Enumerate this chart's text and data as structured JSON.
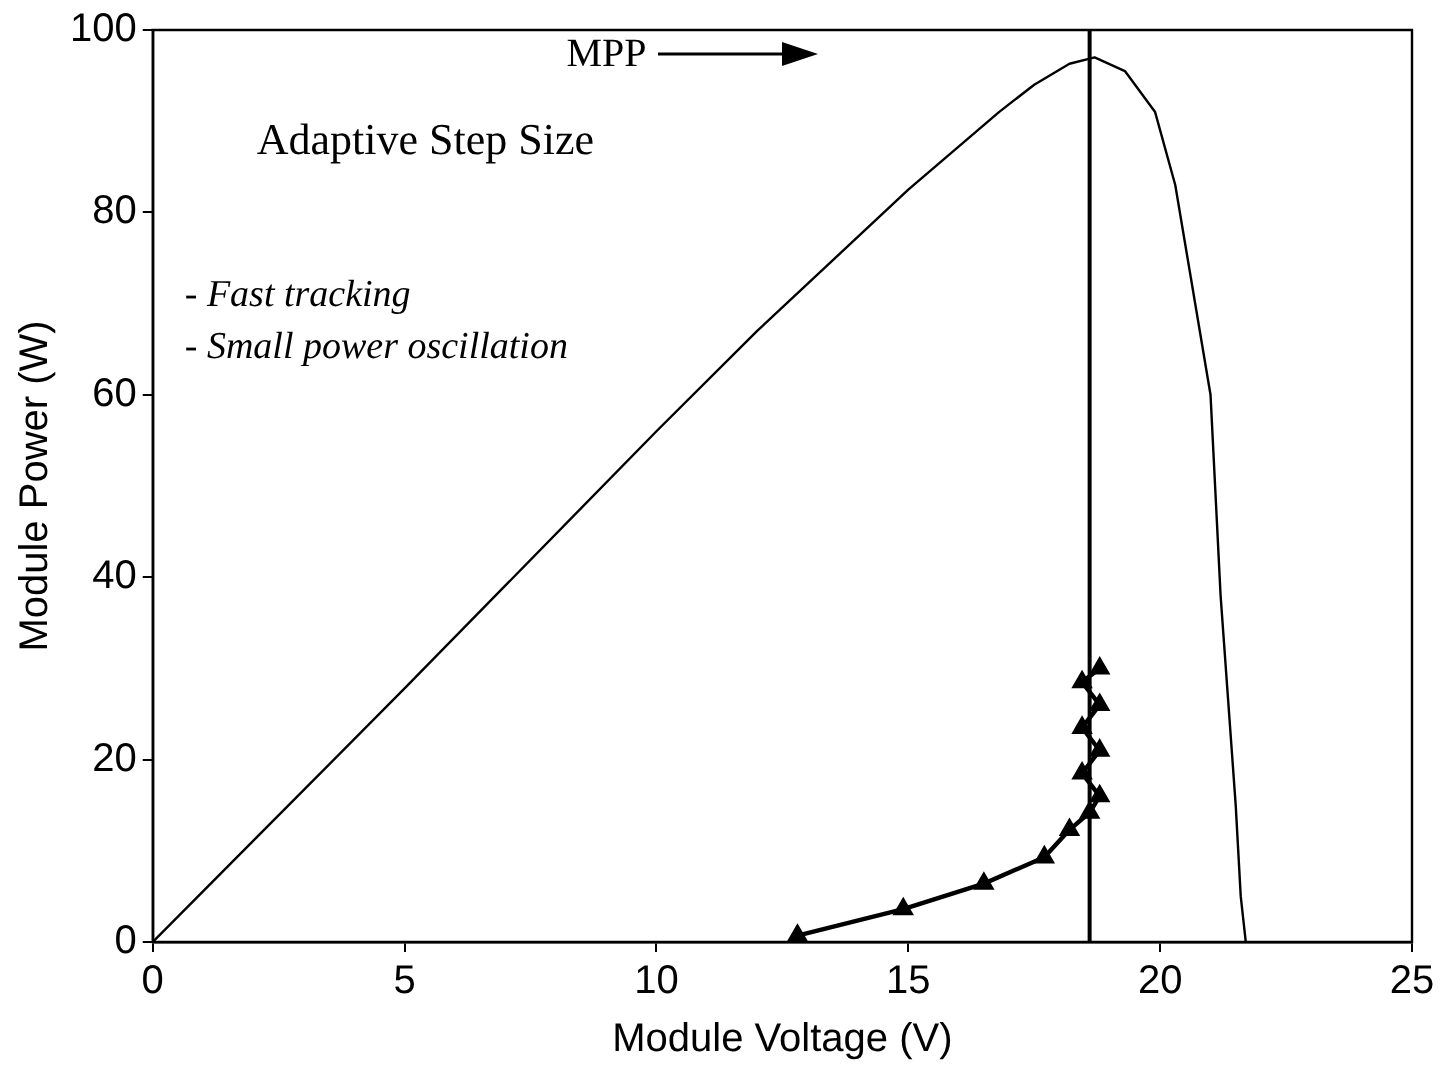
{
  "chart_data": {
    "type": "line",
    "xlabel": "Module Voltage (V)",
    "ylabel": "Module Power (W)",
    "xlim": [
      0,
      25
    ],
    "xticks": [
      0,
      5,
      10,
      15,
      20,
      25
    ],
    "ylim": [
      0,
      100
    ],
    "yticks": [
      0,
      20,
      40,
      60,
      80,
      100
    ],
    "grid": false,
    "legend": false,
    "series": [
      {
        "color": "#000000",
        "marker": "none",
        "x": [
          0,
          5,
          10,
          12,
          15,
          16.8,
          17.5,
          18.2,
          18.7,
          19.3,
          19.9,
          20.3,
          21,
          21.2,
          21.5,
          21.6,
          21.7
        ],
        "values": [
          0,
          27.8,
          56,
          67,
          82.5,
          91,
          94,
          96.3,
          97,
          95.5,
          91,
          83,
          60,
          38,
          15,
          5,
          0
        ]
      },
      {
        "color": "#000000",
        "marker": "triangle",
        "x": [
          12.8,
          14.9,
          16.5,
          17.7,
          18.2,
          18.6,
          18.8,
          18.45,
          18.8,
          18.45,
          18.8,
          18.45,
          18.8
        ],
        "values": [
          0.7,
          3.6,
          6.4,
          9.3,
          12.3,
          14.2,
          16,
          18.5,
          21,
          23.5,
          26,
          28.5,
          30
        ]
      }
    ],
    "ref_lines": [
      {
        "axis": "x",
        "value": 18.6,
        "color": "#000000"
      }
    ],
    "annotations": [
      "MPP",
      "Adaptive Step Size",
      "- Fast tracking",
      "- Small power oscillation"
    ]
  }
}
